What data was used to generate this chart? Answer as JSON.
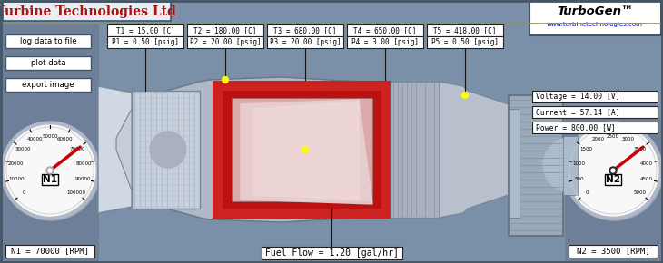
{
  "bg_color": "#7a8fa8",
  "title_text": "Turbine Technologies Ltd",
  "title_color": "#aa1111",
  "title_bg": "#e8eef2",
  "turbogen_text": "TurboGen™",
  "turbogen_url": "www.turbinetechnologies.com",
  "buttons": [
    "log data to file",
    "plot data",
    "export image"
  ],
  "sensors_top": [
    {
      "label": "T1 = 15.00 [C]",
      "label2": "P1 = 0.50 [psig]"
    },
    {
      "label": "T2 = 180.00 [C]",
      "label2": "P2 = 20.00 [psig]"
    },
    {
      "label": "T3 = 680.00 [C]",
      "label2": "P3 = 20.00 [psig]"
    },
    {
      "label": "T4 = 650.00 [C]",
      "label2": "P4 = 3.00 [psig]"
    },
    {
      "label": "T5 = 418.00 [C]",
      "label2": "P5 = 0.50 [psig]"
    }
  ],
  "elec_readings": [
    "Voltage = 14.00 [V]",
    "Current = 57.14 [A]",
    "Power = 800.00 [W]"
  ],
  "fuel_flow": "Fuel Flow = 1.20 [gal/hr]",
  "n1_rpm": "N1 = 70000 [RPM]",
  "n2_rpm": "N2 = 3500 [RPM]",
  "n1_ticks": [
    0,
    10000,
    20000,
    30000,
    40000,
    50000,
    60000,
    70000,
    80000,
    90000,
    100000
  ],
  "n2_ticks": [
    0,
    500,
    1000,
    1500,
    2000,
    2500,
    3000,
    3500,
    4000,
    4500,
    5000
  ],
  "n1_value": 70000,
  "n1_max": 100000,
  "n2_value": 3500,
  "n2_max": 5000,
  "gauge_bg": "#f8f8f8",
  "gauge_rim": "#b0b8c8",
  "gauge_rim2": "#d0d8e0",
  "needle_color_n1": "#cc0000",
  "needle_color_n2": "#cc0000",
  "needle_center_n1": "#aaaaaa",
  "needle_center_n2": "#222222",
  "box_bg": "#ffffff",
  "box_border": "#333333",
  "sensor_line_color": "#111111",
  "yellow_dot": "#ffff00"
}
